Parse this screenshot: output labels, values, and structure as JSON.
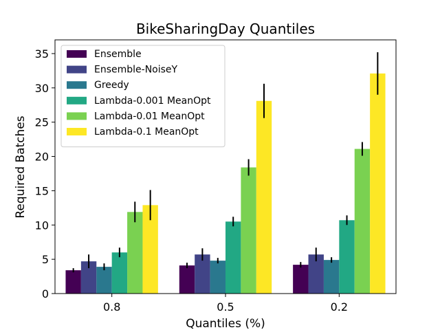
{
  "chart_data": {
    "type": "bar",
    "title": "BikeSharingDay Quantiles",
    "xlabel": "Quantiles (%)",
    "ylabel": "Required Batches",
    "categories": [
      "0.8",
      "0.5",
      "0.2"
    ],
    "ylim": [
      0,
      37
    ],
    "yticks": [
      0,
      5,
      10,
      15,
      20,
      25,
      30,
      35
    ],
    "legend_position": "top-left",
    "series": [
      {
        "name": "Ensemble",
        "color": "#440154",
        "values": [
          3.4,
          4.1,
          4.2
        ],
        "errors": [
          0.3,
          0.4,
          0.4
        ]
      },
      {
        "name": "Ensemble-NoiseY",
        "color": "#414487",
        "values": [
          4.7,
          5.7,
          5.7
        ],
        "errors": [
          1.0,
          0.9,
          1.0
        ]
      },
      {
        "name": "Greedy",
        "color": "#2a788e",
        "values": [
          3.9,
          4.8,
          4.9
        ],
        "errors": [
          0.5,
          0.4,
          0.4
        ]
      },
      {
        "name": "Lambda-0.001 MeanOpt",
        "color": "#22a884",
        "values": [
          6.0,
          10.5,
          10.7
        ],
        "errors": [
          0.7,
          0.7,
          0.7
        ]
      },
      {
        "name": "Lambda-0.01 MeanOpt",
        "color": "#7ad151",
        "values": [
          11.9,
          18.4,
          21.1
        ],
        "errors": [
          1.5,
          1.2,
          1.0
        ]
      },
      {
        "name": "Lambda-0.1 MeanOpt",
        "color": "#fde725",
        "values": [
          12.9,
          28.1,
          32.1
        ],
        "errors": [
          2.2,
          2.5,
          3.1
        ]
      }
    ]
  }
}
